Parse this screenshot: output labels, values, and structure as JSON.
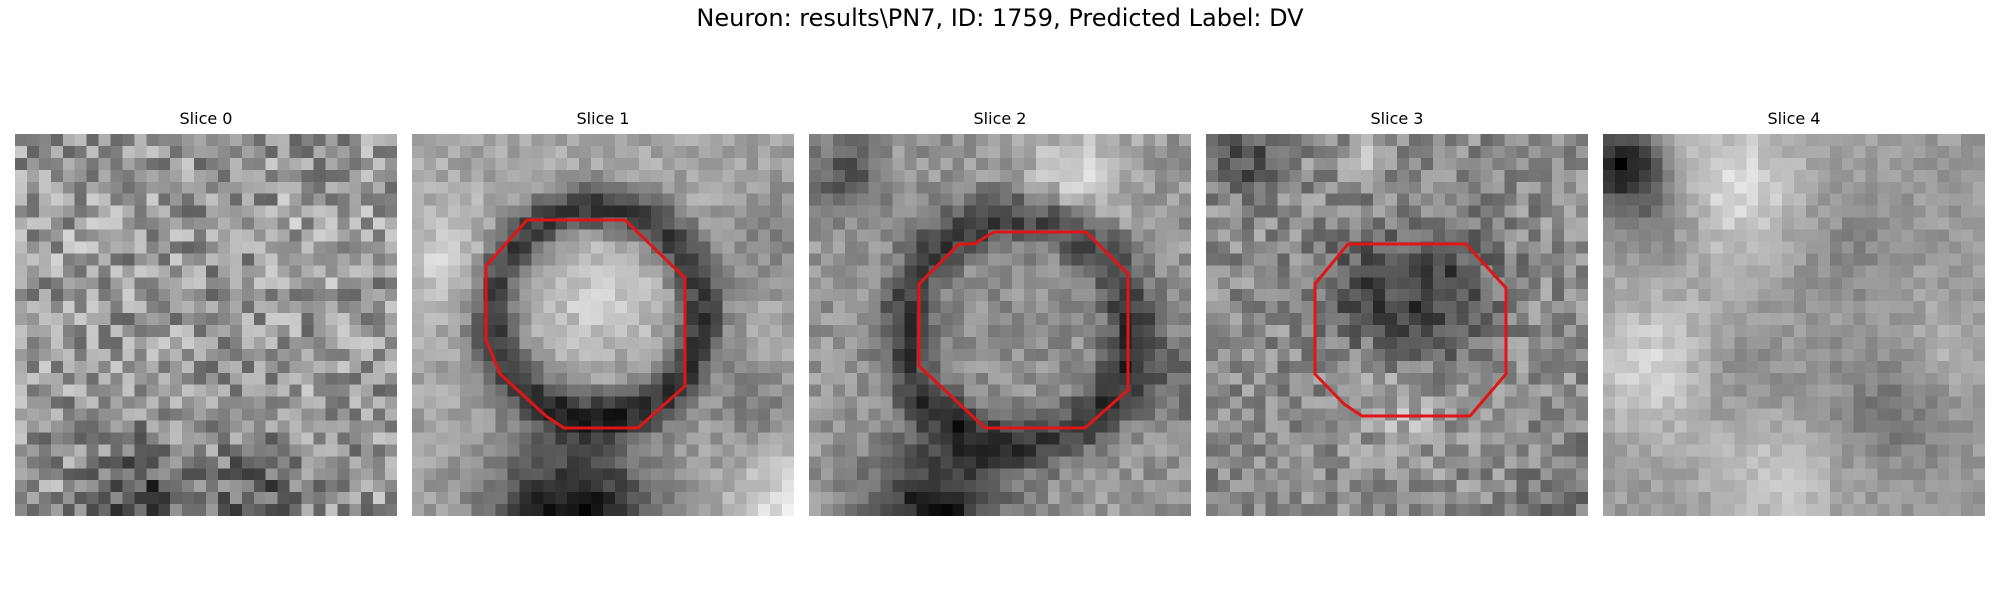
{
  "figure": {
    "title": "Neuron: results\\PN7, ID: 1759, Predicted Label: DV"
  },
  "panels": [
    {
      "title": "Slice 0",
      "has_contour": false
    },
    {
      "title": "Slice 1",
      "has_contour": true
    },
    {
      "title": "Slice 2",
      "has_contour": true
    },
    {
      "title": "Slice 3",
      "has_contour": true
    },
    {
      "title": "Slice 4",
      "has_contour": false
    }
  ],
  "colors": {
    "contour": "#e01515",
    "background": "#ffffff"
  },
  "image": {
    "colormap": "grayscale",
    "pixel_grid": 32
  }
}
